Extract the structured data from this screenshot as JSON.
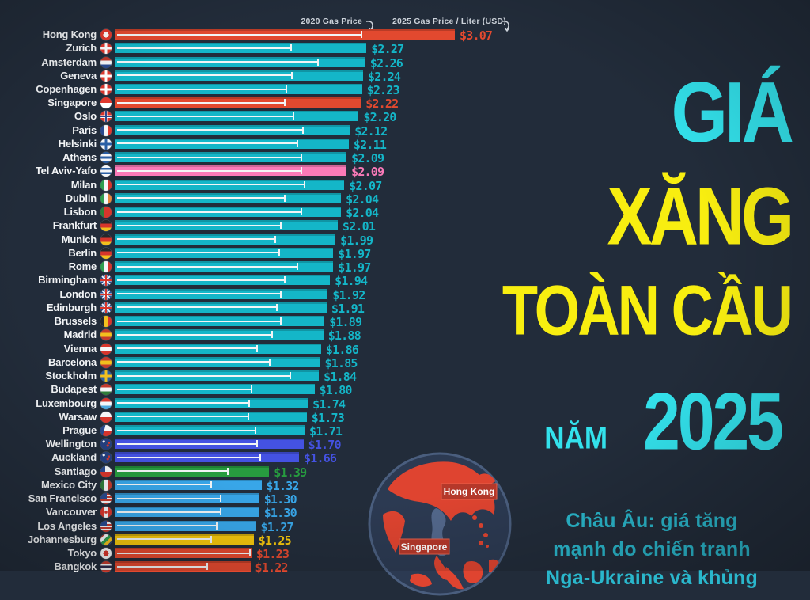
{
  "page": {
    "background": "#222c3a"
  },
  "legend": {
    "label_2020": "2020 Gas Price",
    "label_2025": "2025 Gas Price / Liter (USD)",
    "text_color": "#ccd2da"
  },
  "title": {
    "line1": "GIÁ",
    "line2": "XĂNG",
    "line3": "TOÀN CẦU",
    "line4_small": "NĂM",
    "line4_big": "2025",
    "cyan": "#33e2ec",
    "yellow": "#f8ee10"
  },
  "note": {
    "color": "#2ab7cc",
    "lines": [
      "Châu Âu: giá tăng",
      "mạnh do chiến tranh",
      "Nga-Ukraine và khủng"
    ]
  },
  "globe": {
    "label_hong_kong": "Hong Kong",
    "label_singapore": "Singapore",
    "ocean_color": "#2c3a52",
    "land_color": "#df4430",
    "highlight_land_color": "#53688c"
  },
  "chart_data": {
    "type": "bar",
    "orientation": "horizontal",
    "title": "Giá xăng toàn cầu năm 2025",
    "unit": "USD per liter",
    "value_prefix": "$",
    "xlim": [
      0,
      3.2
    ],
    "legend_position": "top",
    "categories": [
      "Hong Kong",
      "Zurich",
      "Amsterdam",
      "Geneva",
      "Copenhagen",
      "Singapore",
      "Oslo",
      "Paris",
      "Helsinki",
      "Athens",
      "Tel Aviv-Yafo",
      "Milan",
      "Dublin",
      "Lisbon",
      "Frankfurt",
      "Munich",
      "Berlin",
      "Rome",
      "Birmingham",
      "London",
      "Edinburgh",
      "Brussels",
      "Madrid",
      "Vienna",
      "Barcelona",
      "Stockholm",
      "Budapest",
      "Luxembourg",
      "Warsaw",
      "Prague",
      "Wellington",
      "Auckland",
      "Santiago",
      "Mexico City",
      "San Francisco",
      "Vancouver",
      "Los Angeles",
      "Johannesburg",
      "Tokyo",
      "Bangkok"
    ],
    "series": [
      {
        "name": "2025 Gas Price / Liter (USD)",
        "values": [
          3.07,
          2.27,
          2.26,
          2.24,
          2.23,
          2.22,
          2.2,
          2.12,
          2.11,
          2.09,
          2.09,
          2.07,
          2.04,
          2.04,
          2.01,
          1.99,
          1.97,
          1.97,
          1.94,
          1.92,
          1.91,
          1.89,
          1.88,
          1.86,
          1.85,
          1.84,
          1.8,
          1.74,
          1.73,
          1.71,
          1.7,
          1.66,
          1.39,
          1.32,
          1.3,
          1.3,
          1.27,
          1.25,
          1.23,
          1.22
        ]
      },
      {
        "name": "2020 Gas Price (estimated from tick marks)",
        "values": [
          2.25,
          1.61,
          1.85,
          1.62,
          1.57,
          1.55,
          1.63,
          1.72,
          1.67,
          1.7,
          1.7,
          1.73,
          1.55,
          1.7,
          1.52,
          1.47,
          1.5,
          1.67,
          1.55,
          1.52,
          1.48,
          1.52,
          1.44,
          1.3,
          1.42,
          1.6,
          1.25,
          1.23,
          1.22,
          1.29,
          1.3,
          1.33,
          1.04,
          0.89,
          0.97,
          0.97,
          0.94,
          0.89,
          1.24,
          0.85
        ]
      }
    ],
    "bar_color_keys": [
      "red",
      "teal",
      "teal",
      "teal",
      "teal",
      "red",
      "teal",
      "teal",
      "teal",
      "teal",
      "pink",
      "teal",
      "teal",
      "teal",
      "teal",
      "teal",
      "teal",
      "teal",
      "teal",
      "teal",
      "teal",
      "teal",
      "teal",
      "teal",
      "teal",
      "teal",
      "teal",
      "teal",
      "teal",
      "teal",
      "blue",
      "blue",
      "green",
      "ltblue",
      "ltblue",
      "ltblue",
      "ltblue",
      "yellow",
      "red",
      "red"
    ],
    "colors": {
      "teal": "#14b6c8",
      "red": "#e2492f",
      "pink": "#fa7ab8",
      "blue": "#4452e2",
      "ltblue": "#38a6e8",
      "green": "#279c3f",
      "yellow": "#f4c60d",
      "marker_2020": "#f2f5f6"
    },
    "flags": [
      {
        "p": "dot",
        "c": [
          "#e0392e",
          "#ffffff"
        ]
      },
      {
        "p": "cross",
        "c": [
          "#e0392e",
          "#ffffff"
        ]
      },
      {
        "p": "h",
        "c": [
          "#c0392b",
          "#f5f6f8",
          "#2a4a8f"
        ]
      },
      {
        "p": "cross",
        "c": [
          "#e0392e",
          "#ffffff"
        ]
      },
      {
        "p": "cross",
        "c": [
          "#d7352c",
          "#ffffff"
        ]
      },
      {
        "p": "h",
        "c": [
          "#e0392e",
          "#ffffff"
        ]
      },
      {
        "p": "cross2",
        "c": [
          "#d7352c",
          "#ffffff",
          "#2a4a8f"
        ]
      },
      {
        "p": "v",
        "c": [
          "#2a4a8f",
          "#f5f6f8",
          "#e0392e"
        ]
      },
      {
        "p": "cross",
        "c": [
          "#f5f6f8",
          "#2a5fa5"
        ]
      },
      {
        "p": "h",
        "c": [
          "#2a5fa5",
          "#f5f6f8",
          "#2a5fa5",
          "#f5f6f8",
          "#2a5fa5"
        ]
      },
      {
        "p": "h",
        "c": [
          "#f5f6f8",
          "#2a5fa5",
          "#f5f6f8",
          "#2a5fa5",
          "#f5f6f8"
        ]
      },
      {
        "p": "v",
        "c": [
          "#2f9e4f",
          "#f5f6f8",
          "#d7352c"
        ]
      },
      {
        "p": "v",
        "c": [
          "#2f9e4f",
          "#f5f6f8",
          "#e8883b"
        ]
      },
      {
        "p": "v",
        "c": [
          "#2f7d3a",
          "#d7352c",
          "#d7352c"
        ]
      },
      {
        "p": "h",
        "c": [
          "#26282c",
          "#d7352c",
          "#f2c01e"
        ]
      },
      {
        "p": "h",
        "c": [
          "#26282c",
          "#d7352c",
          "#f2c01e"
        ]
      },
      {
        "p": "h",
        "c": [
          "#26282c",
          "#d7352c",
          "#f2c01e"
        ]
      },
      {
        "p": "v",
        "c": [
          "#2f9e4f",
          "#f5f6f8",
          "#d7352c"
        ]
      },
      {
        "p": "uk",
        "c": [
          "#2a4a8f",
          "#f5f6f8",
          "#d7352c"
        ]
      },
      {
        "p": "uk",
        "c": [
          "#2a4a8f",
          "#f5f6f8",
          "#d7352c"
        ]
      },
      {
        "p": "uk",
        "c": [
          "#2a4a8f",
          "#f5f6f8",
          "#d7352c"
        ]
      },
      {
        "p": "v",
        "c": [
          "#26282c",
          "#f2c01e",
          "#d7352c"
        ]
      },
      {
        "p": "h",
        "c": [
          "#c43b2e",
          "#f2c01e",
          "#c43b2e"
        ]
      },
      {
        "p": "h",
        "c": [
          "#d7352c",
          "#f5f6f8",
          "#d7352c"
        ]
      },
      {
        "p": "h",
        "c": [
          "#c43b2e",
          "#f2c01e",
          "#c43b2e"
        ]
      },
      {
        "p": "cross",
        "c": [
          "#2a5fa5",
          "#f2c01e"
        ]
      },
      {
        "p": "h",
        "c": [
          "#c43b2e",
          "#f5f6f8",
          "#2f7d3a"
        ]
      },
      {
        "p": "h",
        "c": [
          "#d7352c",
          "#f5f6f8",
          "#4fa8dd"
        ]
      },
      {
        "p": "h",
        "c": [
          "#f5f6f8",
          "#d7352c"
        ]
      },
      {
        "p": "czech",
        "c": [
          "#2a4a8f",
          "#f5f6f8",
          "#d7352c"
        ]
      },
      {
        "p": "nz",
        "c": [
          "#25407f",
          "#f5f6f8",
          "#d7352c"
        ]
      },
      {
        "p": "nz",
        "c": [
          "#25407f",
          "#f5f6f8",
          "#d7352c"
        ]
      },
      {
        "p": "chile",
        "c": [
          "#2a4a8f",
          "#f5f6f8",
          "#d7352c"
        ]
      },
      {
        "p": "v",
        "c": [
          "#2f7d3a",
          "#f5f6f8",
          "#c43b2e"
        ]
      },
      {
        "p": "usa",
        "c": [
          "#2a4a8f",
          "#f5f6f8",
          "#c43b2e"
        ]
      },
      {
        "p": "canada",
        "c": [
          "#d7352c",
          "#f5f6f8"
        ]
      },
      {
        "p": "usa",
        "c": [
          "#2a4a8f",
          "#f5f6f8",
          "#c43b2e"
        ]
      },
      {
        "p": "d",
        "c": [
          "#c43b2e",
          "#f5f6f8",
          "#2f9e4f",
          "#f2c01e",
          "#25407f"
        ]
      },
      {
        "p": "dot",
        "c": [
          "#f5f6f8",
          "#d7352c"
        ]
      },
      {
        "p": "h",
        "c": [
          "#c43b2e",
          "#f5f6f8",
          "#2d2a4a",
          "#f5f6f8",
          "#c43b2e"
        ]
      }
    ]
  }
}
